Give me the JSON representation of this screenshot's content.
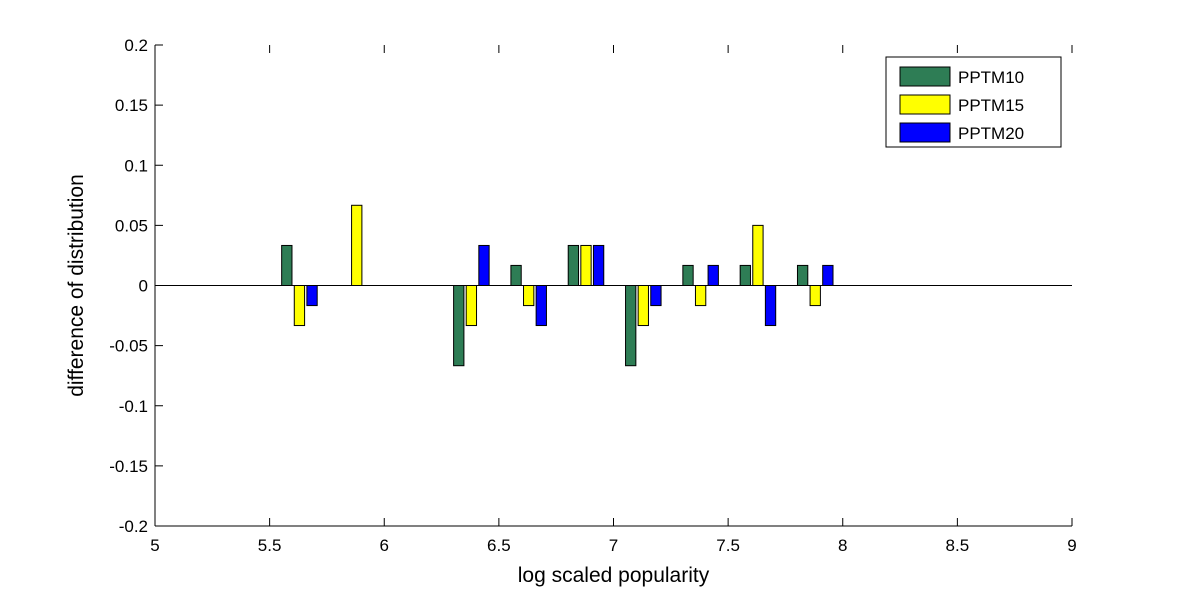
{
  "chart_data": {
    "type": "bar",
    "title": "",
    "xlabel": "log scaled popularity",
    "ylabel": "difference of distribution",
    "xlim": [
      5,
      9
    ],
    "ylim": [
      -0.2,
      0.2
    ],
    "xticks": [
      5,
      5.5,
      6,
      6.5,
      7,
      7.5,
      8,
      8.5,
      9
    ],
    "xtick_labels": [
      "5",
      "5.5",
      "6",
      "6.5",
      "7",
      "7.5",
      "8",
      "8.5",
      "9"
    ],
    "yticks": [
      0.2,
      0.15,
      0.1,
      0.05,
      0,
      -0.05,
      -0.1,
      -0.15,
      -0.2
    ],
    "ytick_labels": [
      "0.2",
      "0.15",
      "0.1",
      "0.05",
      "0",
      "-0.05",
      "-0.1",
      "-0.15",
      "-0.2"
    ],
    "grid": false,
    "legend_position": "top-right",
    "bar_width": 0.045,
    "series": [
      {
        "name": "PPTM10",
        "color": "#2e7d55",
        "x": [
          5.575,
          6.325,
          6.575,
          6.825,
          7.075,
          7.325,
          7.575,
          7.825
        ],
        "values": [
          0.0333,
          -0.0667,
          0.0167,
          0.0333,
          -0.0667,
          0.0167,
          0.0167,
          0.0167
        ]
      },
      {
        "name": "PPTM15",
        "color": "#ffff00",
        "x": [
          5.63,
          5.88,
          6.38,
          6.63,
          6.88,
          7.13,
          7.38,
          7.63,
          7.88
        ],
        "values": [
          -0.0333,
          0.0667,
          -0.0333,
          -0.0167,
          0.0333,
          -0.0333,
          -0.0167,
          0.05,
          -0.0167
        ]
      },
      {
        "name": "PPTM20",
        "color": "#0000ff",
        "x": [
          5.685,
          6.435,
          6.685,
          6.935,
          7.185,
          7.435,
          7.685,
          7.935
        ],
        "values": [
          -0.0167,
          0.0333,
          -0.0333,
          0.0333,
          -0.0167,
          0.0167,
          -0.0333,
          0.0167
        ]
      }
    ]
  }
}
